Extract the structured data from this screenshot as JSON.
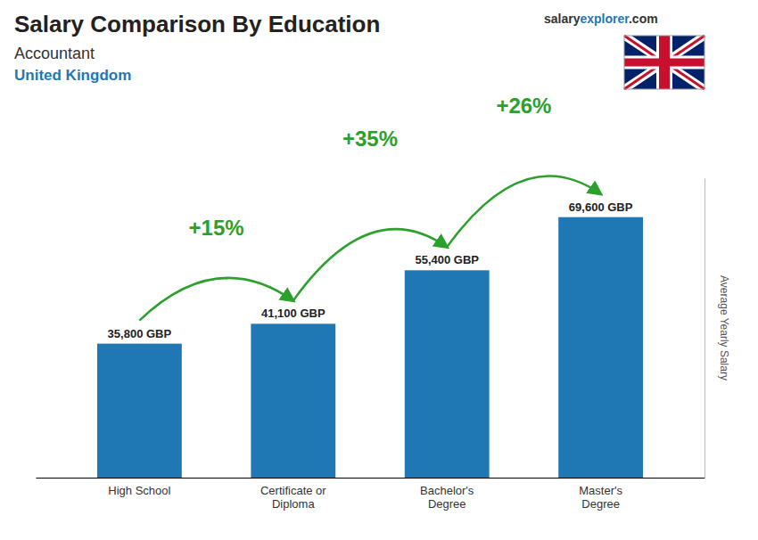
{
  "chart_data": {
    "type": "bar",
    "title": "Salary Comparison By Education",
    "subtitle": [
      "Accountant",
      "United Kingdom"
    ],
    "ylabel": "Average Yearly Salary",
    "watermark": [
      "salary",
      "explorer",
      ".com"
    ],
    "categories": [
      "High School",
      "Certificate or\nDiploma",
      "Bachelor's\nDegree",
      "Master's\nDegree"
    ],
    "values": [
      35800,
      41100,
      55400,
      69600
    ],
    "value_labels": [
      "35,800 GBP",
      "41,100 GBP",
      "55,400 GBP",
      "69,600 GBP"
    ],
    "data_labels": true,
    "annotations": [
      "+15%",
      "+35%",
      "+26%"
    ],
    "ylim": [
      0,
      80000
    ],
    "tick_labels": "x",
    "grid": false
  }
}
